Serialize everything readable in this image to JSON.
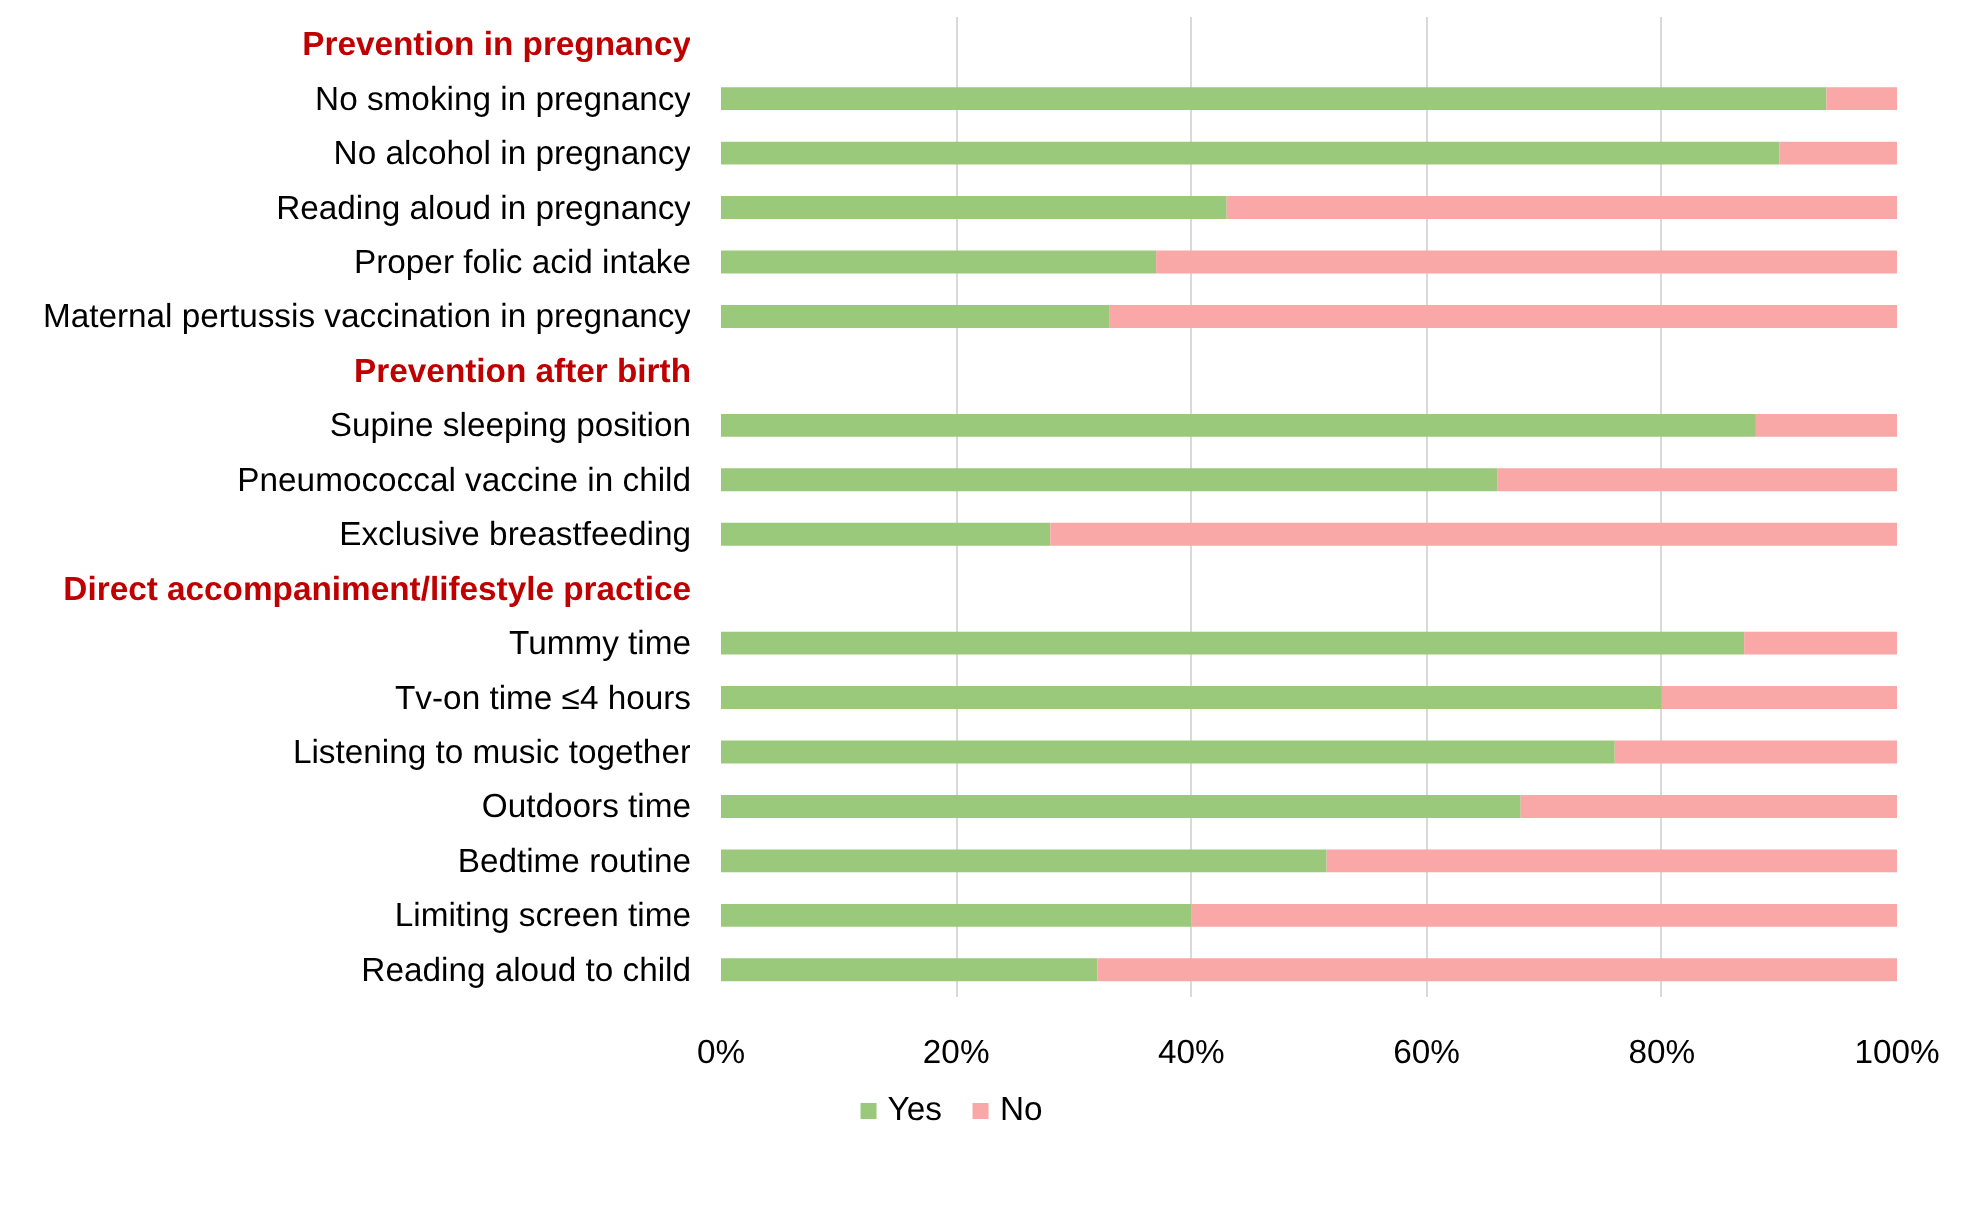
{
  "chart_data": {
    "type": "bar",
    "orientation": "horizontal",
    "stacked": true,
    "categories": [
      "Prevention in pregnancy",
      "No smoking in pregnancy",
      "No alcohol in pregnancy",
      "Reading aloud in pregnancy",
      "Proper folic acid intake",
      "Maternal pertussis vaccination in pregnancy",
      "Prevention after birth",
      "Supine sleeping position",
      "Pneumococcal vaccine in child",
      "Exclusive breastfeeding",
      "Direct accompaniment/lifestyle practice",
      "Tummy time",
      "Tv-on time ≤4 hours",
      "Listening to music together",
      "Outdoors time",
      "Bedtime routine",
      "Limiting screen time",
      "Reading aloud to child"
    ],
    "series": [
      {
        "name": "Yes",
        "color": "#9bc97c",
        "values": [
          null,
          94,
          90,
          43,
          37,
          33,
          null,
          88,
          66,
          28,
          null,
          87,
          80,
          76,
          68,
          51.5,
          40,
          32
        ]
      },
      {
        "name": "No",
        "color": "#f9a7a7",
        "values": [
          null,
          6,
          10,
          57,
          63,
          67,
          null,
          12,
          34,
          72,
          null,
          13,
          20,
          24,
          32,
          48.5,
          60,
          68
        ]
      }
    ],
    "xlim": [
      0,
      100
    ],
    "xticks": [
      {
        "value": 0,
        "label": "0%"
      },
      {
        "value": 20,
        "label": "20%"
      },
      {
        "value": 40,
        "label": "40%"
      },
      {
        "value": 60,
        "label": "60%"
      },
      {
        "value": 80,
        "label": "80%"
      },
      {
        "value": 100,
        "label": "100%"
      }
    ],
    "grid": "x",
    "legend": "bottom"
  }
}
